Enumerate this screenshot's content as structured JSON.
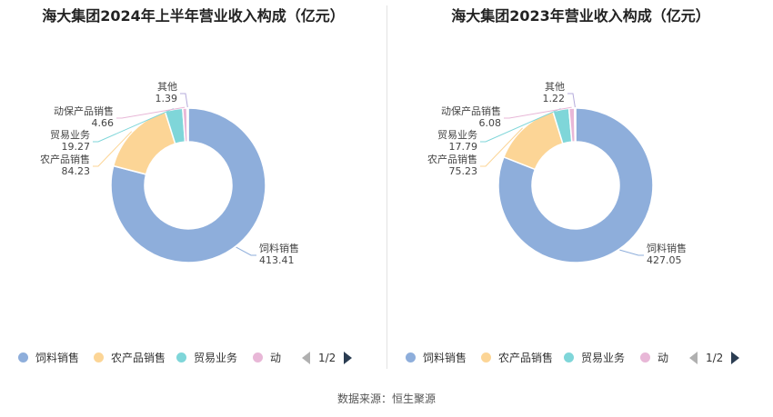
{
  "colors": {
    "饲料销售": "#8eaedb",
    "农产品销售": "#fcd596",
    "贸易业务": "#7fd6d9",
    "动保产品销售": "#e8b7d7",
    "其他": "#b5abdb"
  },
  "source_text": "数据来源：恒生聚源",
  "chart_data": [
    {
      "type": "pie",
      "title": "海大集团2024年上半年营业收入构成（亿元）",
      "slices": [
        {
          "label": "饲料销售",
          "value": 413.41
        },
        {
          "label": "农产品销售",
          "value": 84.23
        },
        {
          "label": "贸易业务",
          "value": 19.27
        },
        {
          "label": "动保产品销售",
          "value": 4.66
        },
        {
          "label": "其他",
          "value": 1.39
        }
      ],
      "legend": {
        "items": [
          "饲料销售",
          "农产品销售",
          "贸易业务",
          "动"
        ],
        "page": "1/2",
        "position": "bottom"
      }
    },
    {
      "type": "pie",
      "title": "海大集团2023年营业收入构成（亿元）",
      "slices": [
        {
          "label": "饲料销售",
          "value": 427.05
        },
        {
          "label": "农产品销售",
          "value": 75.23
        },
        {
          "label": "贸易业务",
          "value": 17.79
        },
        {
          "label": "动保产品销售",
          "value": 6.08
        },
        {
          "label": "其他",
          "value": 1.22
        }
      ],
      "legend": {
        "items": [
          "饲料销售",
          "农产品销售",
          "贸易业务",
          "动"
        ],
        "page": "1/2",
        "position": "bottom"
      }
    }
  ]
}
